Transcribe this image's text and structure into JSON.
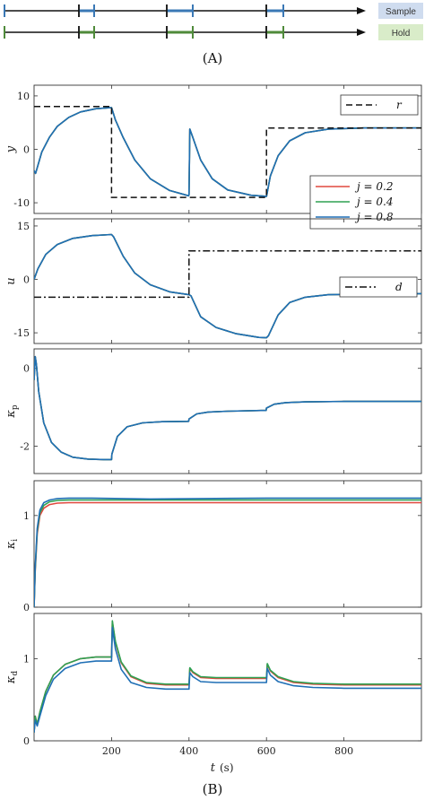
{
  "timing": {
    "caption": "(A)",
    "rows": [
      {
        "label": "Sample",
        "color": "#3a78b5",
        "badge_bg": "#cfdcef"
      },
      {
        "label": "Hold",
        "color": "#4f8a3a",
        "badge_bg": "#d9ecc9"
      }
    ]
  },
  "caption_b": "(B)",
  "xlabel_main": "t",
  "xlabel_unit": "(s)",
  "colors": {
    "red": "#e0483e",
    "green": "#2ea152",
    "blue": "#1f6fb5",
    "ref": "#111111"
  },
  "chart_data": [
    {
      "type": "line",
      "ylabel": "y",
      "xlim": [
        0,
        1000
      ],
      "ylim": [
        -12,
        12
      ],
      "yticks": [
        {
          "v": -10,
          "label": "-10"
        },
        {
          "v": 0,
          "label": "0"
        },
        {
          "v": 10,
          "label": "10"
        }
      ],
      "legend": [
        {
          "name": "r",
          "style": "dashed"
        }
      ],
      "legend2": [
        {
          "name": "j = 0.2",
          "color": "#e0483e"
        },
        {
          "name": "j = 0.4",
          "color": "#2ea152"
        },
        {
          "name": "j = 0.8",
          "color": "#1f6fb5"
        }
      ],
      "reference": {
        "name": "r",
        "x": [
          0,
          200,
          200,
          600,
          600,
          1000
        ],
        "y": [
          8,
          8,
          -9,
          -9,
          4,
          4
        ]
      },
      "series": [
        {
          "color": "#e0483e",
          "x": [
            0,
            4,
            10,
            20,
            40,
            60,
            90,
            120,
            160,
            200,
            201,
            210,
            230,
            260,
            300,
            350,
            399,
            400,
            402,
            410,
            430,
            460,
            500,
            560,
            600,
            601,
            610,
            630,
            660,
            700,
            760,
            850,
            1000
          ],
          "y": [
            -4,
            -4.5,
            -3,
            -0.5,
            2.3,
            4.3,
            6,
            7,
            7.6,
            7.8,
            7.6,
            5.5,
            2.2,
            -2,
            -5.5,
            -7.7,
            -8.7,
            -8.5,
            3.8,
            2.2,
            -2,
            -5.5,
            -7.6,
            -8.6,
            -8.8,
            -8.5,
            -5,
            -1.2,
            1.6,
            3.1,
            3.8,
            4,
            4
          ]
        },
        {
          "color": "#2ea152",
          "x": [
            0,
            4,
            10,
            20,
            40,
            60,
            90,
            120,
            160,
            200,
            201,
            210,
            230,
            260,
            300,
            350,
            399,
            400,
            402,
            410,
            430,
            460,
            500,
            560,
            600,
            601,
            610,
            630,
            660,
            700,
            760,
            850,
            1000
          ],
          "y": [
            -4,
            -4.5,
            -3,
            -0.5,
            2.3,
            4.3,
            6,
            7,
            7.6,
            7.8,
            7.6,
            5.5,
            2.2,
            -2,
            -5.5,
            -7.7,
            -8.7,
            -8.5,
            3.8,
            2.2,
            -2,
            -5.5,
            -7.6,
            -8.6,
            -8.8,
            -8.5,
            -5,
            -1.2,
            1.6,
            3.1,
            3.8,
            4,
            4
          ]
        },
        {
          "color": "#1f6fb5",
          "x": [
            0,
            4,
            10,
            20,
            40,
            60,
            90,
            120,
            160,
            200,
            201,
            210,
            230,
            260,
            300,
            350,
            399,
            400,
            402,
            410,
            430,
            460,
            500,
            560,
            600,
            601,
            610,
            630,
            660,
            700,
            760,
            850,
            1000
          ],
          "y": [
            -4,
            -4.5,
            -3,
            -0.5,
            2.3,
            4.3,
            6,
            7,
            7.6,
            7.8,
            7.6,
            5.5,
            2.2,
            -2,
            -5.5,
            -7.7,
            -8.7,
            -8.5,
            3.8,
            2.2,
            -2,
            -5.5,
            -7.6,
            -8.6,
            -8.8,
            -8.5,
            -5,
            -1.2,
            1.6,
            3.1,
            3.8,
            4,
            4
          ]
        }
      ]
    },
    {
      "type": "line",
      "ylabel": "u",
      "xlim": [
        0,
        1000
      ],
      "ylim": [
        -18,
        17
      ],
      "yticks": [
        {
          "v": -15,
          "label": "-15"
        },
        {
          "v": 0,
          "label": "0"
        },
        {
          "v": 15,
          "label": "15"
        }
      ],
      "legend": [
        {
          "name": "d",
          "style": "dashdot"
        }
      ],
      "reference": {
        "name": "d",
        "x": [
          0,
          400,
          400,
          1000
        ],
        "y": [
          -5,
          -5,
          8,
          8
        ]
      },
      "series": [
        {
          "color": "#e0483e",
          "x": [
            0,
            10,
            30,
            60,
            100,
            150,
            200,
            205,
            230,
            260,
            300,
            350,
            400,
            405,
            430,
            470,
            520,
            580,
            600,
            605,
            630,
            660,
            700,
            760,
            850,
            1000
          ],
          "y": [
            0,
            3,
            7,
            9.8,
            11.5,
            12.3,
            12.6,
            12,
            6.5,
            1.8,
            -1.5,
            -3.5,
            -4.3,
            -4.6,
            -10.5,
            -13.5,
            -15.2,
            -16.3,
            -16.4,
            -15.8,
            -10,
            -6.5,
            -5,
            -4.3,
            -4.1,
            -4
          ]
        },
        {
          "color": "#2ea152",
          "x": [
            0,
            10,
            30,
            60,
            100,
            150,
            200,
            205,
            230,
            260,
            300,
            350,
            400,
            405,
            430,
            470,
            520,
            580,
            600,
            605,
            630,
            660,
            700,
            760,
            850,
            1000
          ],
          "y": [
            0,
            3,
            7,
            9.8,
            11.5,
            12.3,
            12.6,
            12,
            6.5,
            1.8,
            -1.5,
            -3.5,
            -4.3,
            -4.6,
            -10.5,
            -13.5,
            -15.2,
            -16.3,
            -16.4,
            -15.8,
            -10,
            -6.5,
            -5,
            -4.3,
            -4.1,
            -4
          ]
        },
        {
          "color": "#1f6fb5",
          "x": [
            0,
            10,
            30,
            60,
            100,
            150,
            200,
            205,
            230,
            260,
            300,
            350,
            400,
            405,
            430,
            470,
            520,
            580,
            600,
            605,
            630,
            660,
            700,
            760,
            850,
            1000
          ],
          "y": [
            0,
            3,
            7,
            9.8,
            11.5,
            12.3,
            12.6,
            12,
            6.5,
            1.8,
            -1.5,
            -3.5,
            -4.3,
            -4.6,
            -10.5,
            -13.5,
            -15.2,
            -16.3,
            -16.4,
            -15.8,
            -10,
            -6.5,
            -5,
            -4.3,
            -4.1,
            -4
          ]
        }
      ]
    },
    {
      "type": "line",
      "ylabel": "κp",
      "xlim": [
        0,
        1000
      ],
      "ylim": [
        -2.7,
        0.5
      ],
      "yticks": [
        {
          "v": -2,
          "label": "-2"
        },
        {
          "v": 0,
          "label": "0"
        }
      ],
      "series": [
        {
          "color": "#e0483e",
          "x": [
            0,
            3,
            6,
            12,
            25,
            45,
            70,
            100,
            140,
            180,
            200,
            201,
            215,
            240,
            280,
            330,
            399,
            400,
            420,
            450,
            500,
            599,
            600,
            620,
            650,
            700,
            800,
            1000
          ],
          "y": [
            -0.3,
            0.3,
            0.1,
            -0.6,
            -1.4,
            -1.9,
            -2.15,
            -2.28,
            -2.33,
            -2.34,
            -2.34,
            -2.2,
            -1.75,
            -1.5,
            -1.4,
            -1.37,
            -1.36,
            -1.3,
            -1.17,
            -1.12,
            -1.1,
            -1.08,
            -1.02,
            -0.92,
            -0.88,
            -0.86,
            -0.85,
            -0.85
          ]
        },
        {
          "color": "#2ea152",
          "x": [
            0,
            3,
            6,
            12,
            25,
            45,
            70,
            100,
            140,
            180,
            200,
            201,
            215,
            240,
            280,
            330,
            399,
            400,
            420,
            450,
            500,
            599,
            600,
            620,
            650,
            700,
            800,
            1000
          ],
          "y": [
            -0.3,
            0.3,
            0.1,
            -0.6,
            -1.4,
            -1.9,
            -2.15,
            -2.28,
            -2.33,
            -2.34,
            -2.34,
            -2.2,
            -1.75,
            -1.5,
            -1.4,
            -1.37,
            -1.36,
            -1.3,
            -1.17,
            -1.12,
            -1.1,
            -1.08,
            -1.02,
            -0.92,
            -0.88,
            -0.86,
            -0.85,
            -0.85
          ]
        },
        {
          "color": "#1f6fb5",
          "x": [
            0,
            3,
            6,
            12,
            25,
            45,
            70,
            100,
            140,
            180,
            200,
            201,
            215,
            240,
            280,
            330,
            399,
            400,
            420,
            450,
            500,
            599,
            600,
            620,
            650,
            700,
            800,
            1000
          ],
          "y": [
            -0.3,
            0.3,
            0.1,
            -0.6,
            -1.4,
            -1.9,
            -2.15,
            -2.28,
            -2.33,
            -2.34,
            -2.34,
            -2.2,
            -1.75,
            -1.5,
            -1.4,
            -1.37,
            -1.36,
            -1.3,
            -1.17,
            -1.12,
            -1.1,
            -1.08,
            -1.02,
            -0.92,
            -0.88,
            -0.86,
            -0.85,
            -0.85
          ]
        }
      ]
    },
    {
      "type": "line",
      "ylabel": "κi",
      "xlim": [
        0,
        1000
      ],
      "ylim": [
        0,
        1.38
      ],
      "yticks": [
        {
          "v": 0,
          "label": "0"
        },
        {
          "v": 1,
          "label": "1"
        }
      ],
      "series": [
        {
          "color": "#e0483e",
          "x": [
            0,
            3,
            8,
            15,
            25,
            40,
            60,
            90,
            150,
            300,
            600,
            1000
          ],
          "y": [
            0,
            0.4,
            0.8,
            1.0,
            1.08,
            1.12,
            1.135,
            1.14,
            1.14,
            1.14,
            1.14,
            1.14
          ]
        },
        {
          "color": "#2ea152",
          "x": [
            0,
            3,
            8,
            15,
            25,
            40,
            60,
            90,
            150,
            300,
            600,
            1000
          ],
          "y": [
            0,
            0.42,
            0.83,
            1.03,
            1.11,
            1.15,
            1.165,
            1.17,
            1.17,
            1.17,
            1.17,
            1.17
          ]
        },
        {
          "color": "#1f6fb5",
          "x": [
            0,
            3,
            8,
            15,
            25,
            40,
            60,
            90,
            150,
            300,
            600,
            1000
          ],
          "y": [
            0,
            0.45,
            0.86,
            1.06,
            1.14,
            1.17,
            1.185,
            1.19,
            1.19,
            1.18,
            1.19,
            1.19
          ]
        }
      ]
    },
    {
      "type": "line",
      "ylabel": "κd",
      "xlabel": "t (s)",
      "xlim": [
        0,
        1000
      ],
      "ylim": [
        0,
        1.55
      ],
      "xticks": [
        {
          "v": 200,
          "label": "200"
        },
        {
          "v": 400,
          "label": "400"
        },
        {
          "v": 600,
          "label": "600"
        },
        {
          "v": 800,
          "label": "800"
        }
      ],
      "yticks": [
        {
          "v": 0,
          "label": "0"
        },
        {
          "v": 1,
          "label": "1"
        }
      ],
      "series": [
        {
          "color": "#e0483e",
          "x": [
            0,
            3,
            8,
            15,
            30,
            50,
            80,
            120,
            160,
            199,
            200,
            202,
            210,
            225,
            250,
            290,
            340,
            399,
            400,
            402,
            410,
            430,
            470,
            520,
            599,
            600,
            602,
            610,
            630,
            670,
            720,
            800,
            1000
          ],
          "y": [
            0.1,
            0.3,
            0.2,
            0.35,
            0.6,
            0.8,
            0.93,
            1.0,
            1.02,
            1.02,
            1.02,
            1.45,
            1.2,
            0.95,
            0.78,
            0.7,
            0.68,
            0.68,
            0.68,
            0.88,
            0.83,
            0.77,
            0.76,
            0.76,
            0.76,
            0.76,
            0.93,
            0.85,
            0.77,
            0.71,
            0.69,
            0.68,
            0.68
          ]
        },
        {
          "color": "#2ea152",
          "x": [
            0,
            3,
            8,
            15,
            30,
            50,
            80,
            120,
            160,
            199,
            200,
            202,
            210,
            225,
            250,
            290,
            340,
            399,
            400,
            402,
            410,
            430,
            470,
            520,
            599,
            600,
            602,
            610,
            630,
            670,
            720,
            800,
            1000
          ],
          "y": [
            0.1,
            0.3,
            0.2,
            0.35,
            0.6,
            0.8,
            0.93,
            1.0,
            1.02,
            1.02,
            1.02,
            1.46,
            1.21,
            0.96,
            0.79,
            0.71,
            0.69,
            0.69,
            0.69,
            0.89,
            0.84,
            0.78,
            0.77,
            0.77,
            0.77,
            0.77,
            0.94,
            0.86,
            0.78,
            0.72,
            0.7,
            0.69,
            0.69
          ]
        },
        {
          "color": "#1f6fb5",
          "x": [
            0,
            3,
            8,
            15,
            30,
            50,
            80,
            120,
            160,
            199,
            200,
            202,
            210,
            225,
            250,
            290,
            340,
            399,
            400,
            402,
            410,
            430,
            470,
            520,
            599,
            600,
            602,
            610,
            630,
            670,
            720,
            800,
            1000
          ],
          "y": [
            0.1,
            0.25,
            0.18,
            0.3,
            0.55,
            0.75,
            0.88,
            0.95,
            0.97,
            0.97,
            0.97,
            1.38,
            1.12,
            0.87,
            0.71,
            0.65,
            0.63,
            0.63,
            0.63,
            0.83,
            0.78,
            0.72,
            0.71,
            0.71,
            0.71,
            0.71,
            0.88,
            0.8,
            0.72,
            0.67,
            0.65,
            0.64,
            0.64
          ]
        }
      ]
    }
  ]
}
